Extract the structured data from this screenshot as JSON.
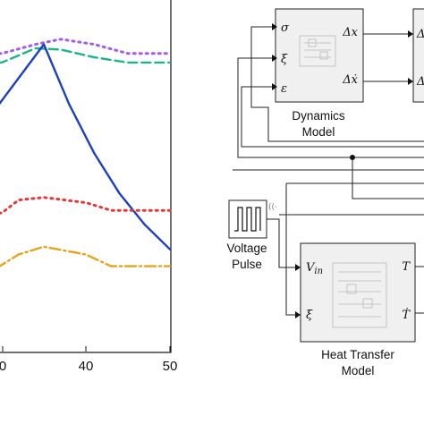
{
  "chart_data": {
    "type": "line",
    "x_ticks": [
      "0",
      "40",
      "50"
    ],
    "series": [
      {
        "style": "dotted",
        "color": "#a45ee5",
        "points": [
          [
            20,
            55
          ],
          [
            30,
            55
          ],
          [
            34,
            48
          ],
          [
            37,
            44
          ],
          [
            41,
            48
          ],
          [
            45,
            55
          ],
          [
            50,
            55
          ]
        ]
      },
      {
        "style": "dashed",
        "color": "#20b38a",
        "points": [
          [
            20,
            62
          ],
          [
            30,
            62
          ],
          [
            34,
            51
          ],
          [
            37,
            52
          ],
          [
            41,
            58
          ],
          [
            45,
            62
          ],
          [
            50,
            62
          ]
        ]
      },
      {
        "style": "solid",
        "color": "#1e3fc4",
        "points": [
          [
            20,
            150
          ],
          [
            29,
            100
          ],
          [
            35,
            48
          ],
          [
            38,
            94
          ],
          [
            41,
            132
          ],
          [
            44,
            163
          ],
          [
            47,
            187
          ],
          [
            50,
            206
          ]
        ]
      },
      {
        "style": "dotted",
        "color": "#e03c3c",
        "points": [
          [
            20,
            178
          ],
          [
            30,
            178
          ],
          [
            32,
            168
          ],
          [
            35,
            166
          ],
          [
            40,
            170
          ],
          [
            43,
            176
          ],
          [
            50,
            176
          ]
        ]
      },
      {
        "style": "dashdot",
        "color": "#e3a51f",
        "points": [
          [
            20,
            222
          ],
          [
            29,
            222
          ],
          [
            32,
            210
          ],
          [
            35,
            204
          ],
          [
            40,
            210
          ],
          [
            43,
            219
          ],
          [
            50,
            219
          ]
        ]
      }
    ]
  },
  "diagram": {
    "blocks": {
      "dynamics": {
        "title_line1": "Dynamics",
        "title_line2": "Model",
        "inputs": [
          "σ",
          "ξ",
          "ε"
        ],
        "outputs": [
          "Δx",
          "Δẋ"
        ]
      },
      "heat": {
        "title_line1": "Heat Transfer",
        "title_line2": "Model",
        "inputs": [
          "V_in",
          "ξ̇"
        ],
        "outputs": [
          "T",
          "Ṫ"
        ]
      },
      "pulse": {
        "title_line1": "Voltage",
        "title_line2": "Pulse"
      },
      "right_partial": {
        "labels": [
          "Δ",
          "Δ"
        ]
      }
    }
  }
}
